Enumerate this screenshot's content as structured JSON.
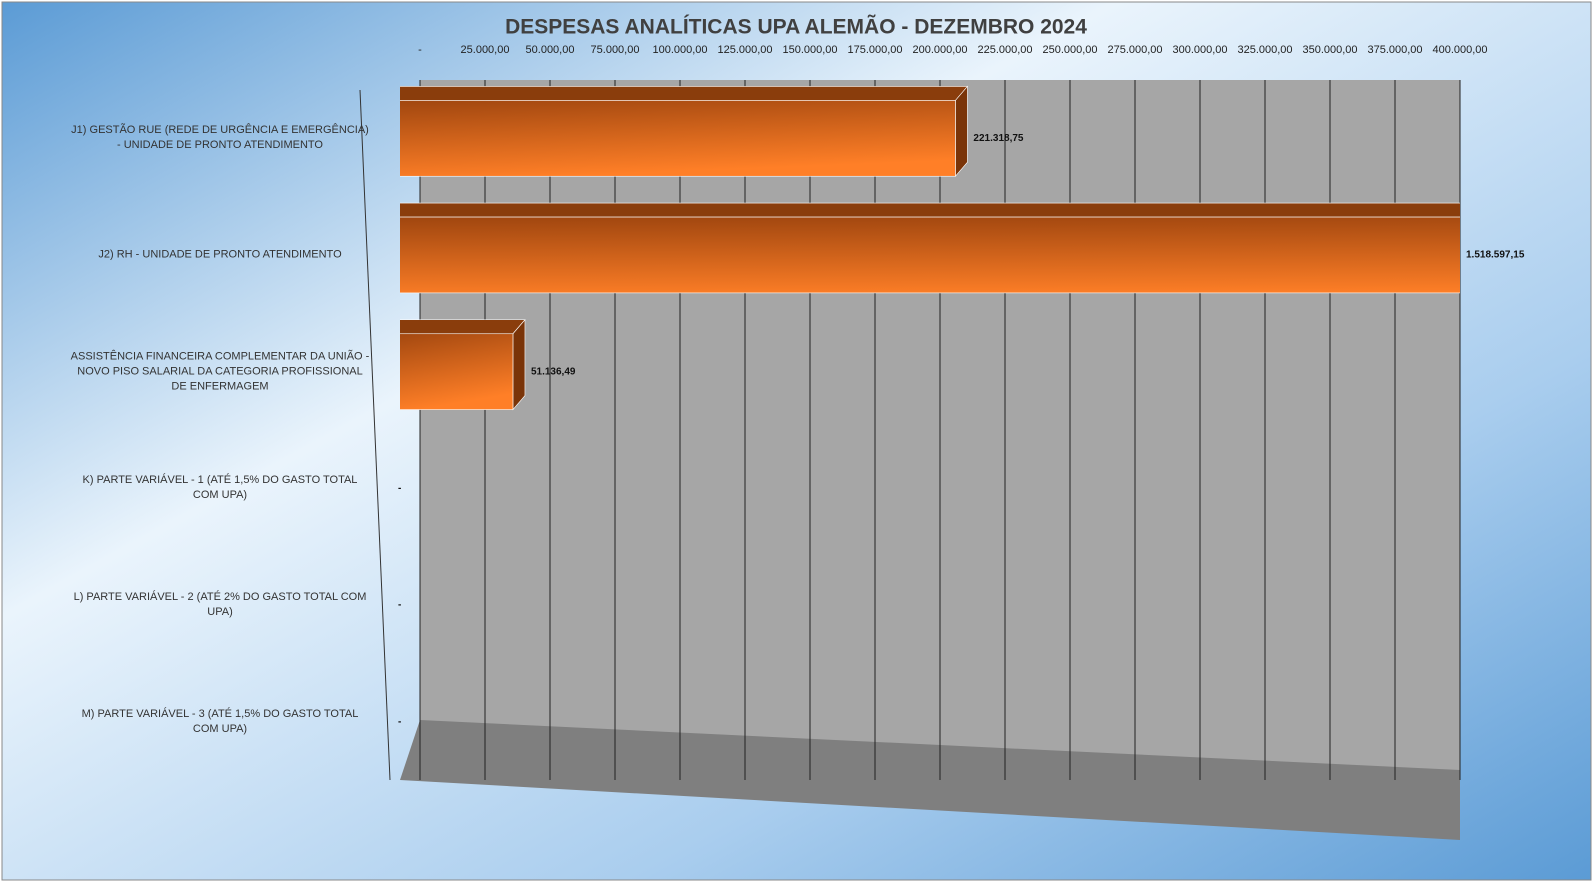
{
  "chart_data": {
    "type": "bar3d_horizontal",
    "title": "DESPESAS ANALÍTICAS UPA ALEMÃO - DEZEMBRO 2024",
    "categories": [
      "J1) GESTÃO RUE (REDE DE URGÊNCIA E EMERGÊNCIA) - UNIDADE DE PRONTO ATENDIMENTO",
      "J2) RH - UNIDADE DE PRONTO ATENDIMENTO",
      "ASSISTÊNCIA FINANCEIRA COMPLEMENTAR DA UNIÃO - NOVO PISO SALARIAL DA CATEGORIA PROFISSIONAL DE ENFERMAGEM",
      "K) PARTE VARIÁVEL - 1 (ATÉ 1,5% DO GASTO TOTAL COM UPA)",
      "L) PARTE VARIÁVEL - 2 (ATÉ 2% DO GASTO TOTAL COM UPA)",
      "M) PARTE VARIÁVEL - 3 (ATÉ 1,5% DO GASTO TOTAL COM UPA)"
    ],
    "values": [
      221318.75,
      1518597.15,
      51136.49,
      0,
      0,
      0
    ],
    "value_labels": [
      "221.318,75",
      "1.518.597,15",
      "51.136,49",
      "-",
      "-",
      "-"
    ],
    "color": "#e8701f",
    "xlim": [
      0,
      400000
    ],
    "xticks": [
      {
        "value": 0,
        "label": "-"
      },
      {
        "value": 25000,
        "label": "25.000,00"
      },
      {
        "value": 50000,
        "label": "50.000,00"
      },
      {
        "value": 75000,
        "label": "75.000,00"
      },
      {
        "value": 100000,
        "label": "100.000,00"
      },
      {
        "value": 125000,
        "label": "125.000,00"
      },
      {
        "value": 150000,
        "label": "150.000,00"
      },
      {
        "value": 175000,
        "label": "175.000,00"
      },
      {
        "value": 200000,
        "label": "200.000,00"
      },
      {
        "value": 225000,
        "label": "225.000,00"
      },
      {
        "value": 250000,
        "label": "250.000,00"
      },
      {
        "value": 275000,
        "label": "275.000,00"
      },
      {
        "value": 300000,
        "label": "300.000,00"
      },
      {
        "value": 325000,
        "label": "325.000,00"
      },
      {
        "value": 350000,
        "label": "350.000,00"
      },
      {
        "value": 375000,
        "label": "375.000,00"
      },
      {
        "value": 400000,
        "label": "400.000,00"
      }
    ],
    "grid": true
  }
}
